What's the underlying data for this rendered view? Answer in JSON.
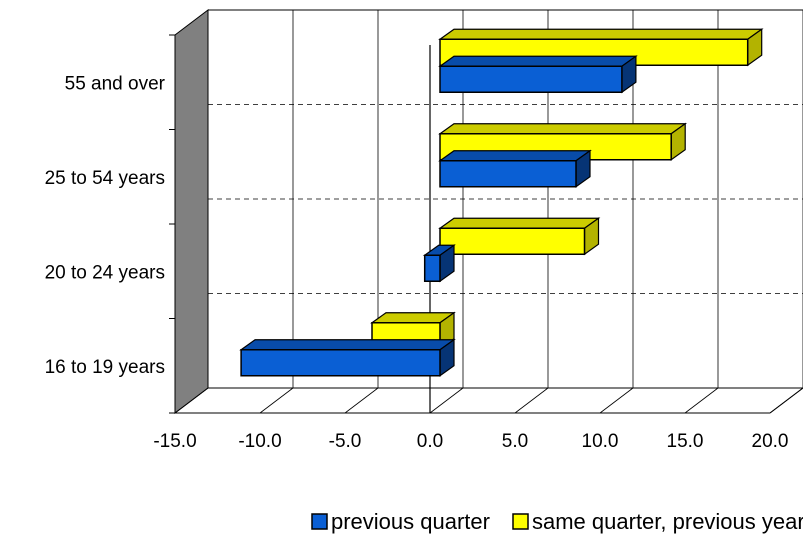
{
  "chart_data": {
    "type": "bar",
    "orientation": "horizontal",
    "style": "3d",
    "categories": [
      "16 to 19 years",
      "20 to 24 years",
      "25 to 54 years",
      "55 and over"
    ],
    "series": [
      {
        "name": "previous quarter",
        "values": [
          -11.7,
          -0.9,
          8.0,
          10.7
        ],
        "color": "#0a5fd4"
      },
      {
        "name": "same quarter, previous year",
        "values": [
          -4.0,
          8.5,
          13.6,
          18.1
        ],
        "color": "#ffff00"
      }
    ],
    "xlim": [
      -15,
      20
    ],
    "xticks": [
      "-15.0",
      "-10.0",
      "-5.0",
      "0.0",
      "5.0",
      "10.0",
      "15.0",
      "20.0"
    ],
    "xtick_values": [
      -15,
      -10,
      -5,
      0,
      5,
      10,
      15,
      20
    ],
    "title": "",
    "xlabel": "",
    "ylabel": "",
    "grid": true,
    "legend_position": "bottom",
    "colors": {
      "wall": "#808080",
      "edge": "#000000"
    }
  }
}
